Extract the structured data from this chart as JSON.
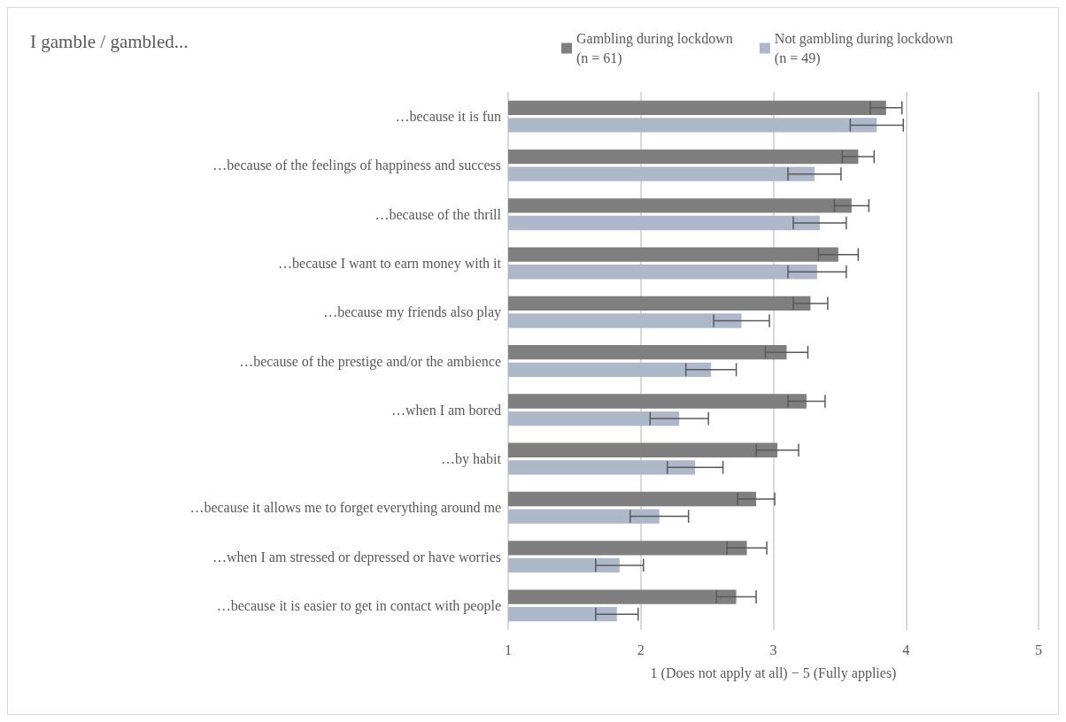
{
  "chart_data": {
    "type": "bar",
    "orientation": "horizontal",
    "title": "I gamble / gambled...",
    "xlabel": "1 (Does not apply at all) − 5 (Fully applies)",
    "categories": [
      "…because it is fun",
      "…because of the feelings of happiness and success",
      "…because of the thrill",
      "…because I want to earn money with it",
      "…because my friends also play",
      "…because of the prestige and/or the ambience",
      "…when I am bored",
      "…by habit",
      "…because it allows me to forget everything around me",
      "…when I am stressed or depressed or have worries",
      "…because it is easier to get in contact with people"
    ],
    "series": [
      {
        "name": "Gambling during lockdown\n(n = 61)",
        "color": "#7f7f7f",
        "values": [
          3.85,
          3.64,
          3.59,
          3.49,
          3.28,
          3.1,
          3.25,
          3.03,
          2.87,
          2.8,
          2.72
        ],
        "errors": [
          0.12,
          0.12,
          0.13,
          0.15,
          0.13,
          0.16,
          0.14,
          0.16,
          0.14,
          0.15,
          0.15
        ]
      },
      {
        "name": "Not gambling during lockdown\n(n = 49)",
        "color": "#adb9ca",
        "values": [
          3.78,
          3.31,
          3.35,
          3.33,
          2.76,
          2.53,
          2.29,
          2.41,
          2.14,
          1.84,
          1.82
        ],
        "errors": [
          0.2,
          0.2,
          0.2,
          0.22,
          0.21,
          0.19,
          0.22,
          0.21,
          0.22,
          0.18,
          0.16
        ]
      }
    ],
    "xlim": [
      1,
      5
    ],
    "xticks": [
      1,
      2,
      3,
      4,
      5
    ],
    "grid": "x",
    "legend": "top"
  }
}
